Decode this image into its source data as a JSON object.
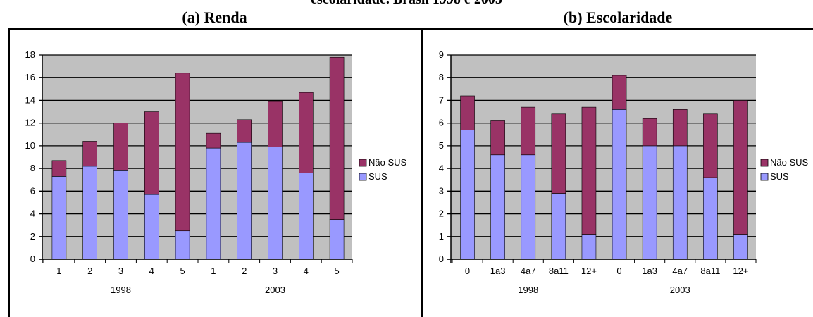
{
  "header": {
    "caption": "escolaridade. Brasil 1998 e 2003"
  },
  "colors": {
    "sus": "#9999ff",
    "nao_sus": "#993366",
    "plot_bg": "#c0c0c0",
    "frame": "#000000"
  },
  "chart_data": [
    {
      "type": "bar",
      "stacked": true,
      "title": "(a) Renda",
      "categories": [
        "1",
        "2",
        "3",
        "4",
        "5",
        "1",
        "2",
        "3",
        "4",
        "5"
      ],
      "groups": [
        {
          "label": "1998",
          "start": 0,
          "end": 4
        },
        {
          "label": "2003",
          "start": 5,
          "end": 9
        }
      ],
      "series": [
        {
          "name": "SUS",
          "values": [
            7.3,
            8.2,
            7.8,
            5.7,
            2.5,
            9.8,
            10.3,
            9.9,
            7.6,
            3.5
          ]
        },
        {
          "name": "Não SUS",
          "values": [
            1.4,
            2.2,
            4.2,
            7.3,
            13.9,
            1.3,
            2.0,
            4.0,
            7.1,
            14.3
          ]
        }
      ],
      "ylim": [
        0,
        18
      ],
      "yticks": [
        "0",
        "2",
        "4",
        "6",
        "8",
        "10",
        "12",
        "14",
        "16",
        "18"
      ],
      "grid": true,
      "legend": "right"
    },
    {
      "type": "bar",
      "stacked": true,
      "title": "(b) Escolaridade",
      "categories": [
        "0",
        "1a3",
        "4a7",
        "8a11",
        "12+",
        "0",
        "1a3",
        "4a7",
        "8a11",
        "12+"
      ],
      "groups": [
        {
          "label": "1998",
          "start": 0,
          "end": 4
        },
        {
          "label": "2003",
          "start": 5,
          "end": 9
        }
      ],
      "series": [
        {
          "name": "SUS",
          "values": [
            5.7,
            4.6,
            4.6,
            2.9,
            1.1,
            6.6,
            5.0,
            5.0,
            3.6,
            1.1
          ]
        },
        {
          "name": "Não SUS",
          "values": [
            1.5,
            1.5,
            2.1,
            3.5,
            5.6,
            1.5,
            1.2,
            1.6,
            2.8,
            5.9
          ]
        }
      ],
      "ylim": [
        0,
        9
      ],
      "yticks": [
        "0",
        "1",
        "2",
        "3",
        "4",
        "5",
        "6",
        "7",
        "8",
        "9"
      ],
      "grid": true,
      "legend": "right"
    }
  ]
}
